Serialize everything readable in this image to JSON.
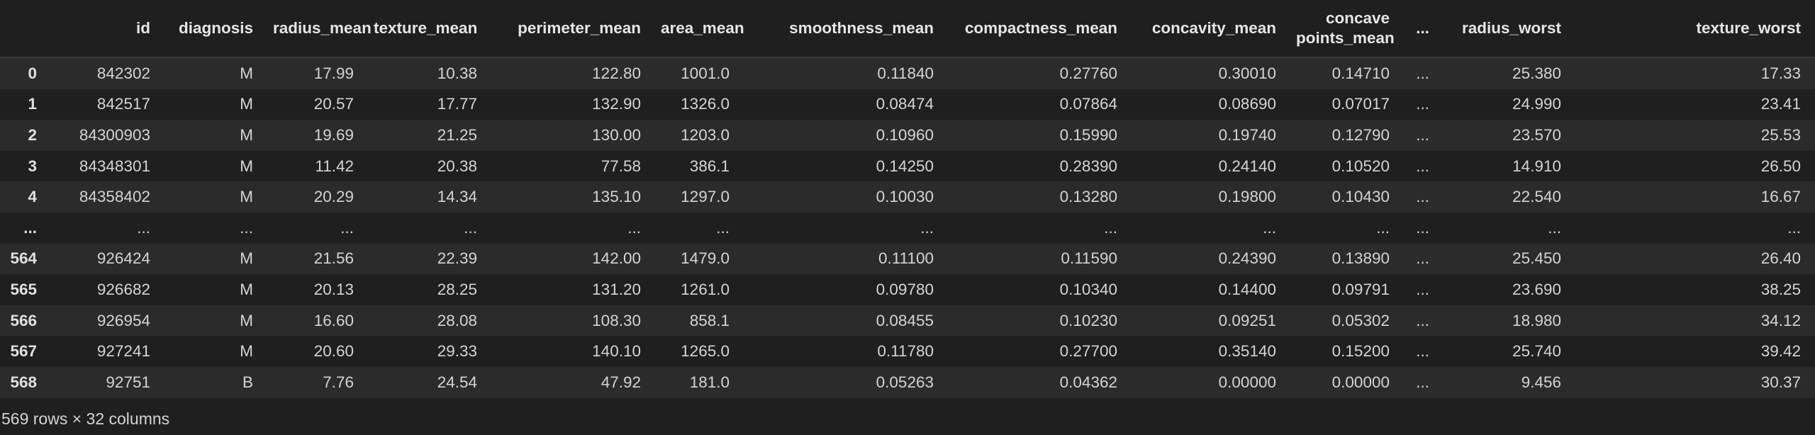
{
  "columns": [
    "",
    "id",
    "diagnosis",
    "radius_mean",
    "texture_mean",
    "perimeter_mean",
    "area_mean",
    "smoothness_mean",
    "compactness_mean",
    "concavity_mean",
    "concave\npoints_mean",
    "...",
    "radius_worst",
    "texture_worst"
  ],
  "rows": [
    [
      "0",
      "842302",
      "M",
      "17.99",
      "10.38",
      "122.80",
      "1001.0",
      "0.11840",
      "0.27760",
      "0.30010",
      "0.14710",
      "...",
      "25.380",
      "17.33"
    ],
    [
      "1",
      "842517",
      "M",
      "20.57",
      "17.77",
      "132.90",
      "1326.0",
      "0.08474",
      "0.07864",
      "0.08690",
      "0.07017",
      "...",
      "24.990",
      "23.41"
    ],
    [
      "2",
      "84300903",
      "M",
      "19.69",
      "21.25",
      "130.00",
      "1203.0",
      "0.10960",
      "0.15990",
      "0.19740",
      "0.12790",
      "...",
      "23.570",
      "25.53"
    ],
    [
      "3",
      "84348301",
      "M",
      "11.42",
      "20.38",
      "77.58",
      "386.1",
      "0.14250",
      "0.28390",
      "0.24140",
      "0.10520",
      "...",
      "14.910",
      "26.50"
    ],
    [
      "4",
      "84358402",
      "M",
      "20.29",
      "14.34",
      "135.10",
      "1297.0",
      "0.10030",
      "0.13280",
      "0.19800",
      "0.10430",
      "...",
      "22.540",
      "16.67"
    ],
    [
      "...",
      "...",
      "...",
      "...",
      "...",
      "...",
      "...",
      "...",
      "...",
      "...",
      "...",
      "...",
      "...",
      "..."
    ],
    [
      "564",
      "926424",
      "M",
      "21.56",
      "22.39",
      "142.00",
      "1479.0",
      "0.11100",
      "0.11590",
      "0.24390",
      "0.13890",
      "...",
      "25.450",
      "26.40"
    ],
    [
      "565",
      "926682",
      "M",
      "20.13",
      "28.25",
      "131.20",
      "1261.0",
      "0.09780",
      "0.10340",
      "0.14400",
      "0.09791",
      "...",
      "23.690",
      "38.25"
    ],
    [
      "566",
      "926954",
      "M",
      "16.60",
      "28.08",
      "108.30",
      "858.1",
      "0.08455",
      "0.10230",
      "0.09251",
      "0.05302",
      "...",
      "18.980",
      "34.12"
    ],
    [
      "567",
      "927241",
      "M",
      "20.60",
      "29.33",
      "140.10",
      "1265.0",
      "0.11780",
      "0.27700",
      "0.35140",
      "0.15200",
      "...",
      "25.740",
      "39.42"
    ],
    [
      "568",
      "92751",
      "B",
      "7.76",
      "24.54",
      "47.92",
      "181.0",
      "0.05263",
      "0.04362",
      "0.00000",
      "0.00000",
      "...",
      "9.456",
      "30.37"
    ]
  ],
  "summary": "569 rows × 32 columns"
}
